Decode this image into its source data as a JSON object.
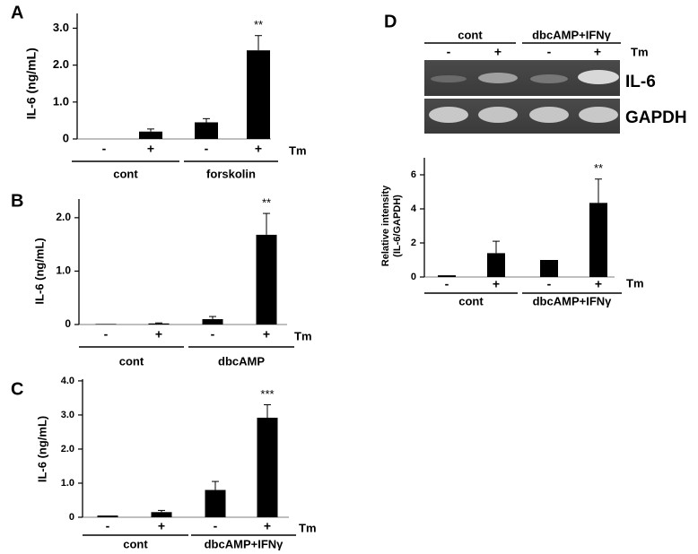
{
  "chart_data": [
    {
      "type": "bar",
      "label": "A",
      "ylabel": "IL-6 (ng/mL)",
      "categories": [
        "-",
        "+",
        "-",
        "+"
      ],
      "values": [
        0,
        0.2,
        0.45,
        2.4
      ],
      "errors": [
        0,
        0.07,
        0.1,
        0.4
      ],
      "annotations": [
        null,
        null,
        null,
        "**"
      ],
      "color": "#000000",
      "ylim": [
        0,
        3.4
      ],
      "yticks": [
        0,
        {
          "value": 1,
          "label": "1.0"
        },
        {
          "value": 2,
          "label": "2.0"
        },
        {
          "value": 3,
          "label": "3.0"
        }
      ],
      "group_labels": [
        "cont",
        "forskolin"
      ],
      "treatment_label": "Tm"
    },
    {
      "type": "bar",
      "label": "B",
      "ylabel": "IL-6 (ng/mL)",
      "categories": [
        "-",
        "+",
        "-",
        "+"
      ],
      "values": [
        0.01,
        0.02,
        0.1,
        1.68
      ],
      "errors": [
        0,
        0.01,
        0.05,
        0.4
      ],
      "annotations": [
        null,
        null,
        null,
        "**"
      ],
      "color": "#000000",
      "ylim": [
        0,
        2.35
      ],
      "yticks": [
        0,
        {
          "value": 1,
          "label": "1.0"
        },
        {
          "value": 2,
          "label": "2.0"
        }
      ],
      "group_labels": [
        "cont",
        "dbcAMP"
      ],
      "treatment_label": "Tm"
    },
    {
      "type": "bar",
      "label": "C",
      "ylabel": "IL-6 (ng/mL)",
      "categories": [
        "-",
        "+",
        "-",
        "+"
      ],
      "values": [
        0.05,
        0.15,
        0.8,
        2.92
      ],
      "errors": [
        0,
        0.05,
        0.25,
        0.38
      ],
      "annotations": [
        null,
        null,
        null,
        "***"
      ],
      "color": "#000000",
      "ylim": [
        0,
        4.05
      ],
      "yticks": [
        0,
        {
          "value": 1,
          "label": "1.0"
        },
        {
          "value": 2,
          "label": "2.0"
        },
        {
          "value": 3,
          "label": "3.0"
        },
        {
          "value": 4,
          "label": "4.0"
        }
      ],
      "group_labels": [
        "cont",
        "dbcAMP+IFNγ"
      ],
      "treatment_label": "Tm"
    },
    {
      "type": "bar",
      "label": "D",
      "ylabel": [
        "Relative intensity",
        "(IL-6/GAPDH)"
      ],
      "categories": [
        "-",
        "+",
        "-",
        "+"
      ],
      "values": [
        0.1,
        1.4,
        1.0,
        4.35
      ],
      "errors": [
        0,
        0.7,
        0,
        1.4
      ],
      "annotations": [
        null,
        null,
        null,
        "**"
      ],
      "color": "#000000",
      "ylim": [
        0,
        7
      ],
      "yticks": [
        0,
        2,
        4,
        6
      ],
      "group_labels": [
        "cont",
        "dbcAMP+IFNγ"
      ],
      "treatment_label": "Tm"
    }
  ],
  "gel": {
    "group_labels": [
      "cont",
      "dbcAMP+IFNγ"
    ],
    "treatment_label": "Tm",
    "lane_labels": [
      "-",
      "+",
      "-",
      "+"
    ],
    "row_labels": [
      "IL-6",
      "GAPDH"
    ]
  }
}
